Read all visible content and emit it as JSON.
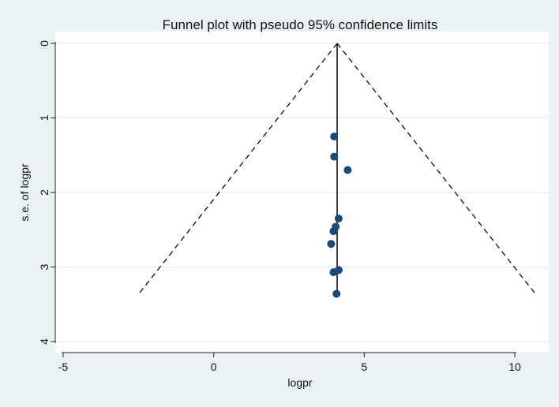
{
  "chart_data": {
    "type": "scatter",
    "title": "Funnel plot with pseudo 95% confidence limits",
    "xlabel": "logpr",
    "ylabel": "s.e. of logpr",
    "xlim": [
      -5.2,
      10.8
    ],
    "ylim": [
      0,
      4.1
    ],
    "y_inverted": true,
    "x_ticks": [
      -5,
      0,
      5,
      10
    ],
    "x_tick_labels": [
      "-5",
      "0",
      "5",
      "10"
    ],
    "y_ticks": [
      0,
      1,
      2,
      3,
      4
    ],
    "y_tick_labels": [
      "0",
      "1",
      "2",
      "3",
      "4"
    ],
    "grid": "horizontal",
    "legend": "none",
    "pooled_estimate": 4.1,
    "se_max": 3.36,
    "ci_multiplier": 1.96,
    "series": [
      {
        "points": [
          {
            "x": 4.0,
            "y": 1.25
          },
          {
            "x": 4.0,
            "y": 1.52
          },
          {
            "x": 4.45,
            "y": 1.7
          },
          {
            "x": 4.15,
            "y": 2.35
          },
          {
            "x": 4.05,
            "y": 2.46
          },
          {
            "x": 3.98,
            "y": 2.52
          },
          {
            "x": 3.9,
            "y": 2.69
          },
          {
            "x": 4.15,
            "y": 3.04
          },
          {
            "x": 3.98,
            "y": 3.07
          },
          {
            "x": 4.08,
            "y": 3.36
          }
        ]
      }
    ],
    "colors": {
      "marker": "#1a4a78",
      "funnel": "#1a1a1a",
      "pooled_line": "#111111",
      "plot_background": "#ffffff",
      "outer_background": "#eaf2f3",
      "grid": "#dde8ea"
    }
  }
}
